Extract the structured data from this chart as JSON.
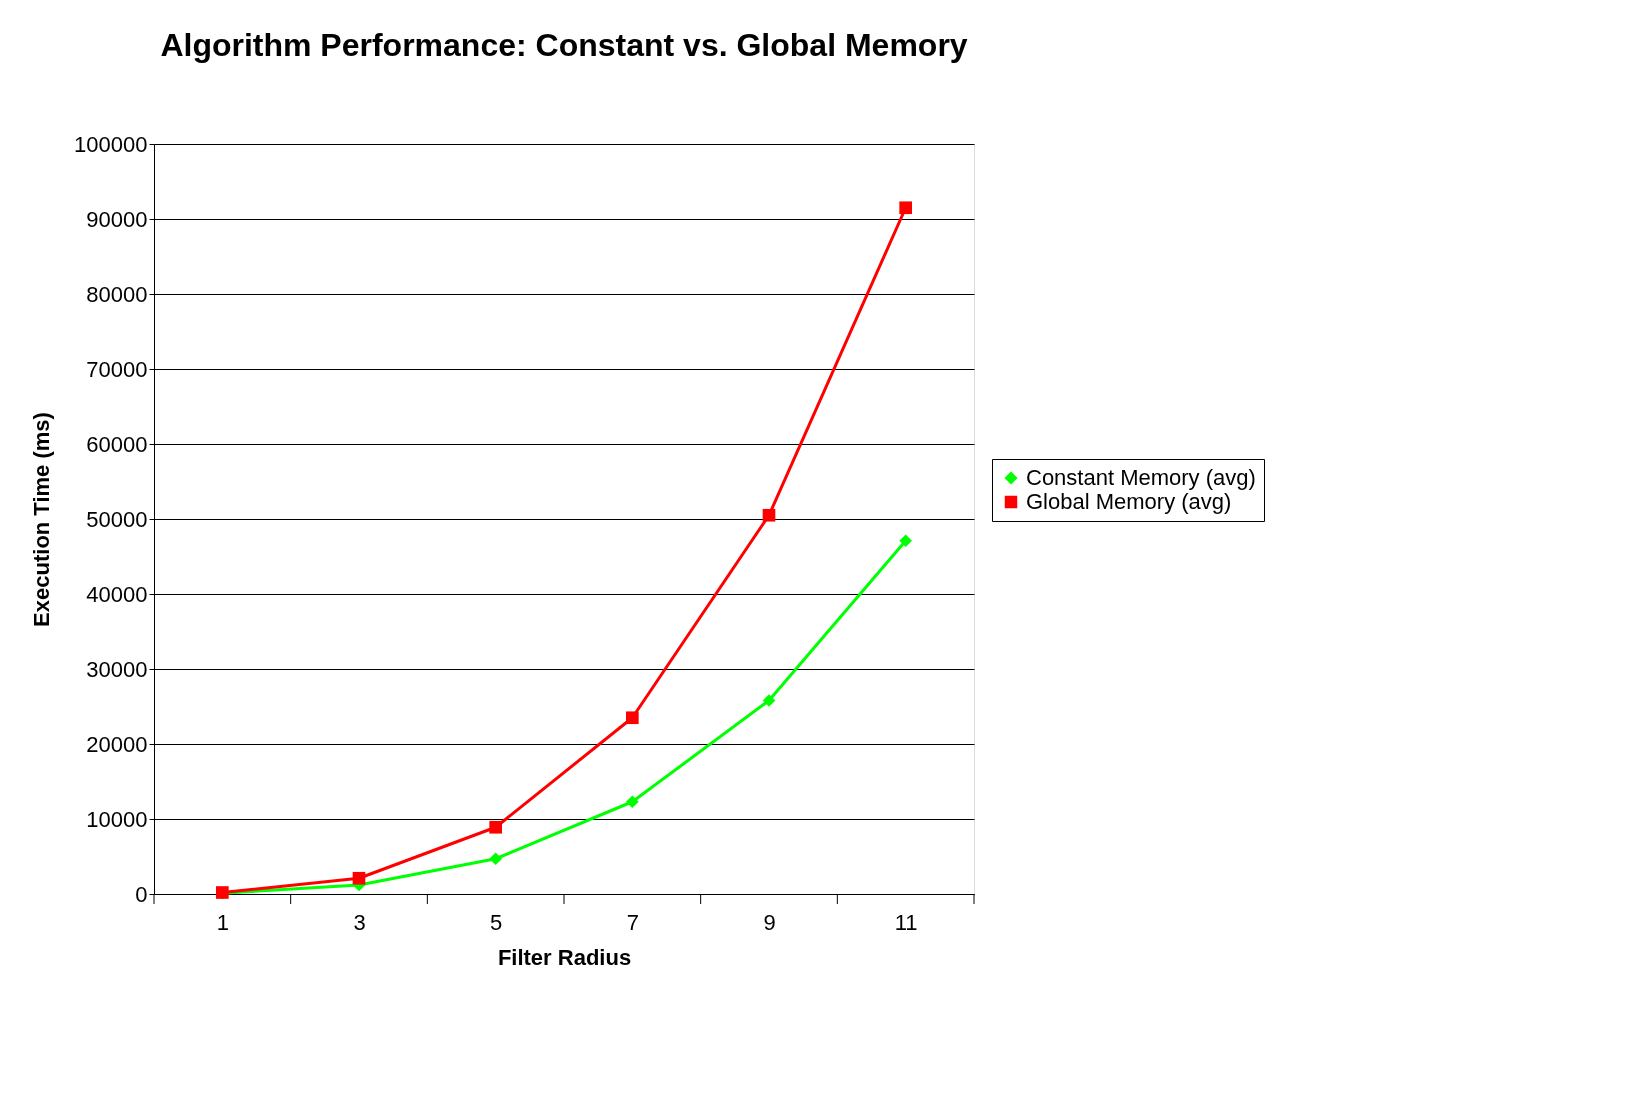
{
  "chart_data": {
    "type": "line",
    "title": "Algorithm Performance: Constant vs. Global Memory",
    "xlabel": "Filter Radius",
    "ylabel": "Execution Time (ms)",
    "categories": [
      "1",
      "3",
      "5",
      "7",
      "9",
      "11"
    ],
    "series": [
      {
        "name": "Constant Memory (avg)",
        "color": "#00ff00",
        "marker": "diamond",
        "values": [
          100,
          1200,
          4700,
          12300,
          25800,
          47100
        ]
      },
      {
        "name": "Global Memory (avg)",
        "color": "#ff0000",
        "marker": "square",
        "values": [
          200,
          2100,
          8900,
          23500,
          50500,
          91500
        ]
      }
    ],
    "ylim": [
      0,
      100000
    ],
    "yticks": [
      0,
      10000,
      20000,
      30000,
      40000,
      50000,
      60000,
      70000,
      80000,
      90000,
      100000
    ],
    "grid": "y",
    "legend": "right",
    "line_style": "solid"
  }
}
